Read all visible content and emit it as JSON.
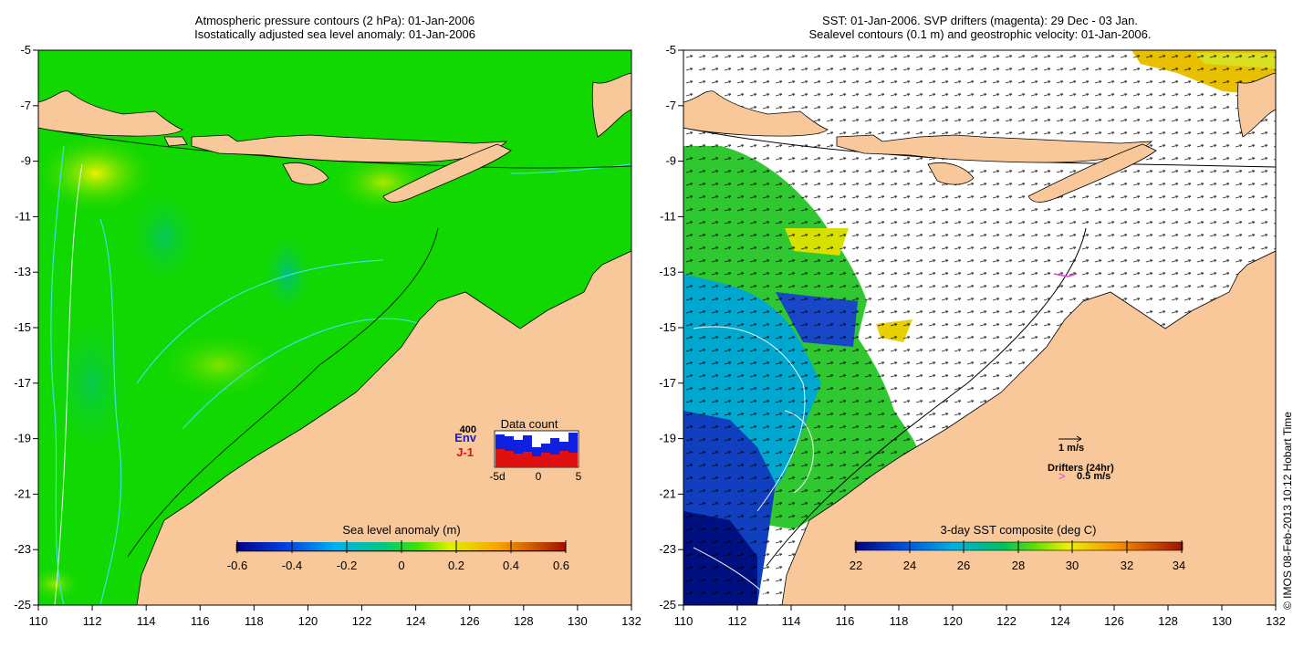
{
  "left_panel": {
    "title_line1": "Atmospheric pressure contours (2 hPa): 01-Jan-2006",
    "title_line2": "Isostatically adjusted sea level anomaly: 01-Jan-2006",
    "colorbar": {
      "title": "Sea level anomaly (m)",
      "ticks": [
        "-0.6",
        "-0.4",
        "-0.2",
        "0",
        "0.2",
        "0.4",
        "0.6"
      ]
    },
    "inset": {
      "title": "Data count",
      "max_label": "400",
      "env_label": "Env",
      "j1_label": "J-1",
      "x_ticks": [
        "-5d",
        "0",
        "5"
      ],
      "env_color": "#1020e0",
      "j1_color": "#e01010"
    }
  },
  "right_panel": {
    "title_line1": "SST: 01-Jan-2006. SVP drifters (magenta): 29 Dec - 03 Jan.",
    "title_line2": "Sealevel contours (0.1 m) and geostrophic velocity: 01-Jan-2006.",
    "colorbar": {
      "title": "3-day SST composite (deg C)",
      "ticks": [
        "22",
        "24",
        "26",
        "28",
        "30",
        "32",
        "34"
      ]
    },
    "legend": {
      "velocity_label": "1 m/s",
      "drifters_label": "Drifters (24hr)",
      "drifter_speed_label": "0.5 m/s",
      "drifter_color": "#e040e0"
    }
  },
  "axes": {
    "y_ticks": [
      "-5",
      "-7",
      "-9",
      "-11",
      "-13",
      "-15",
      "-17",
      "-19",
      "-21",
      "-23",
      "-25"
    ],
    "x_ticks": [
      "110",
      "112",
      "114",
      "116",
      "118",
      "120",
      "122",
      "124",
      "126",
      "128",
      "130",
      "132"
    ]
  },
  "colors": {
    "land": "#f8c89a",
    "ocean_left": "#10d800",
    "pressure_contour": "#40e0e0"
  },
  "copyright": "© IMOS 08-Feb-2013 10:12 Hobart Time"
}
